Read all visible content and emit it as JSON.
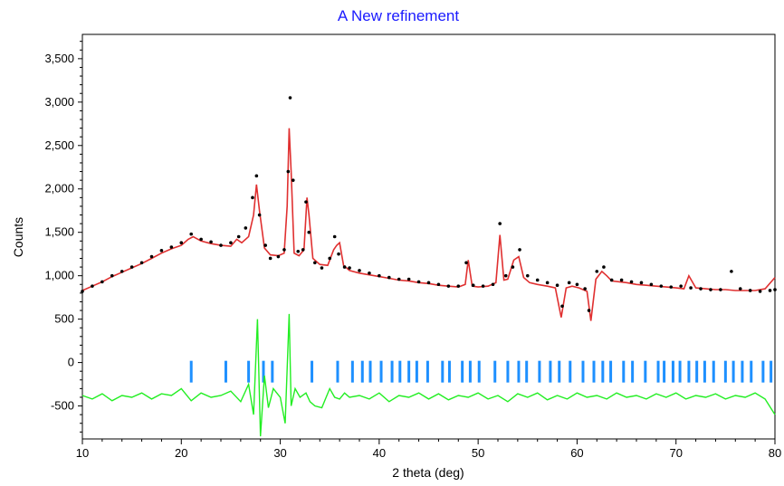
{
  "chart_data": {
    "type": "line",
    "title": "A New refinement",
    "xlabel": "2 theta (deg)",
    "ylabel": "Counts",
    "xlim": [
      10,
      80
    ],
    "ylim": [
      -880,
      3780
    ],
    "xticks": [
      10,
      20,
      30,
      40,
      50,
      60,
      70,
      80
    ],
    "xtick_labels": [
      "10",
      "20",
      "30",
      "40",
      "50",
      "60",
      "70",
      "80"
    ],
    "yticks": [
      -500,
      0,
      500,
      1000,
      1500,
      2000,
      2500,
      3000,
      3500
    ],
    "ytick_labels": [
      "-500",
      "0",
      "500",
      "1,000",
      "1,500",
      "2,000",
      "2,500",
      "3,000",
      "3,500"
    ],
    "grid": false,
    "colors": {
      "observed": "#000000",
      "calculated": "#e03030",
      "difference": "#22ee22",
      "reflections": "#1e90ff",
      "title": "#1a1aff"
    },
    "series": [
      {
        "name": "",
        "style": "markers",
        "color": "#000000",
        "x": [
          10,
          11,
          12,
          13,
          14,
          15,
          16,
          17,
          18,
          19,
          20,
          21,
          22,
          23,
          24,
          25,
          25.8,
          26.5,
          27.2,
          27.6,
          27.9,
          28.5,
          29,
          29.8,
          30.4,
          30.8,
          31.0,
          31.3,
          31.8,
          32.3,
          32.6,
          32.9,
          33.5,
          34.2,
          35,
          35.5,
          35.9,
          36.5,
          37,
          38,
          39,
          40,
          41,
          42,
          43,
          44,
          45,
          46,
          47,
          48,
          48.8,
          49.5,
          50.5,
          51.5,
          52.2,
          52.8,
          53.5,
          54.2,
          55,
          56,
          57,
          58,
          58.5,
          59.2,
          60,
          60.8,
          61.2,
          62,
          62.7,
          63.5,
          64.5,
          65.5,
          66.5,
          67.5,
          68.5,
          69.5,
          70.5,
          71.5,
          72.5,
          73.5,
          74.5,
          75.6,
          76.5,
          77.5,
          78.5,
          79.5,
          80
        ],
        "y": [
          820,
          880,
          930,
          1000,
          1050,
          1100,
          1150,
          1220,
          1290,
          1330,
          1380,
          1480,
          1420,
          1390,
          1350,
          1380,
          1450,
          1550,
          1900,
          2150,
          1700,
          1350,
          1200,
          1220,
          1300,
          2200,
          3050,
          2100,
          1280,
          1300,
          1850,
          1500,
          1150,
          1090,
          1200,
          1450,
          1250,
          1100,
          1090,
          1060,
          1030,
          1000,
          980,
          960,
          960,
          930,
          920,
          900,
          880,
          880,
          1150,
          890,
          880,
          900,
          1600,
          1000,
          1100,
          1300,
          1000,
          950,
          920,
          890,
          650,
          920,
          900,
          850,
          600,
          1050,
          1100,
          950,
          950,
          930,
          920,
          900,
          880,
          870,
          880,
          860,
          850,
          840,
          840,
          1050,
          850,
          830,
          820,
          830,
          840
        ]
      },
      {
        "name": "",
        "style": "line",
        "color": "#e03030",
        "x": [
          10,
          11,
          12,
          13,
          14,
          15,
          16,
          17,
          18,
          19,
          20,
          20.7,
          21.2,
          22,
          23,
          24,
          25,
          25.6,
          26.1,
          26.8,
          27.3,
          27.6,
          27.9,
          28.4,
          29,
          29.8,
          30.4,
          30.7,
          30.9,
          31.1,
          31.4,
          31.9,
          32.4,
          32.7,
          32.9,
          33.3,
          34,
          34.8,
          35.4,
          35.7,
          36,
          36.4,
          37,
          38,
          39,
          40,
          41,
          42,
          43,
          44,
          45,
          46,
          47,
          48,
          48.7,
          49,
          49.4,
          50,
          51,
          51.8,
          52.2,
          52.6,
          53,
          53.6,
          54.1,
          54.6,
          55.2,
          56,
          57,
          57.8,
          58.4,
          58.9,
          59.5,
          60.2,
          61,
          61.4,
          61.9,
          62.5,
          63,
          63.5,
          64.3,
          65,
          66,
          67,
          68,
          69,
          70,
          70.8,
          71.3,
          72,
          73,
          74,
          75,
          76,
          77,
          78,
          79,
          80
        ],
        "y": [
          830,
          880,
          930,
          990,
          1040,
          1090,
          1140,
          1200,
          1260,
          1310,
          1350,
          1420,
          1450,
          1400,
          1370,
          1350,
          1340,
          1420,
          1380,
          1450,
          1700,
          2050,
          1750,
          1320,
          1240,
          1230,
          1260,
          1800,
          2700,
          2200,
          1260,
          1230,
          1300,
          1900,
          1700,
          1200,
          1130,
          1120,
          1300,
          1350,
          1380,
          1120,
          1060,
          1030,
          1010,
          990,
          970,
          950,
          940,
          920,
          910,
          890,
          880,
          870,
          900,
          1180,
          880,
          870,
          880,
          920,
          1470,
          950,
          960,
          1180,
          1220,
          980,
          920,
          900,
          880,
          860,
          520,
          860,
          880,
          860,
          820,
          480,
          960,
          1050,
          1000,
          940,
          930,
          920,
          900,
          890,
          880,
          870,
          860,
          850,
          1000,
          860,
          850,
          840,
          840,
          830,
          830,
          830,
          850,
          980
        ]
      },
      {
        "name": "",
        "style": "line",
        "color": "#22ee22",
        "x": [
          10,
          11,
          12,
          13,
          14,
          15,
          16,
          17,
          18,
          19,
          20,
          21,
          22,
          23,
          24,
          25,
          26,
          26.8,
          27.3,
          27.7,
          28,
          28.4,
          28.8,
          29.3,
          30,
          30.5,
          30.9,
          31.1,
          31.5,
          32,
          32.6,
          33,
          33.5,
          34.2,
          35,
          35.5,
          36,
          36.5,
          37,
          38,
          39,
          40,
          41,
          42,
          43,
          44,
          45,
          46,
          47,
          48,
          49,
          50,
          51,
          52,
          53,
          54,
          55,
          56,
          57,
          58,
          59,
          60,
          61,
          62,
          63,
          64,
          65,
          66,
          67,
          68,
          69,
          70,
          71,
          72,
          73,
          74,
          75,
          76,
          77,
          78,
          79,
          80
        ],
        "y": [
          -380,
          -420,
          -360,
          -440,
          -380,
          -400,
          -350,
          -420,
          -360,
          -380,
          -300,
          -440,
          -350,
          -400,
          -380,
          -330,
          -450,
          -250,
          -600,
          500,
          -850,
          -150,
          -520,
          -300,
          -400,
          -700,
          560,
          -500,
          -300,
          -400,
          -350,
          -450,
          -500,
          -520,
          -300,
          -400,
          -420,
          -350,
          -400,
          -380,
          -420,
          -350,
          -450,
          -380,
          -400,
          -350,
          -420,
          -360,
          -430,
          -380,
          -400,
          -350,
          -420,
          -380,
          -450,
          -360,
          -400,
          -350,
          -430,
          -380,
          -420,
          -350,
          -400,
          -380,
          -420,
          -350,
          -400,
          -380,
          -420,
          -360,
          -400,
          -350,
          -420,
          -380,
          -400,
          -360,
          -420,
          -380,
          -400,
          -350,
          -420,
          -600
        ]
      }
    ],
    "reflections": {
      "name": "",
      "color": "#1e90ff",
      "y_min": -230,
      "y_max": 20,
      "x": [
        21,
        24.5,
        26.8,
        28.3,
        29.2,
        33.2,
        35.8,
        37.3,
        38.3,
        39.1,
        40.2,
        41.3,
        42.1,
        43,
        43.8,
        44.9,
        46.4,
        47.1,
        48.4,
        49.2,
        50.1,
        51.7,
        53,
        54.1,
        54.9,
        56.2,
        57.3,
        58.2,
        59.3,
        60.6,
        61.7,
        62.6,
        63.4,
        64.7,
        65.6,
        66.9,
        68.2,
        68.8,
        69.7,
        70.4,
        71.3,
        72.1,
        72.9,
        73.8,
        75,
        75.8,
        76.7,
        77.6,
        78.8,
        79.6
      ]
    }
  }
}
